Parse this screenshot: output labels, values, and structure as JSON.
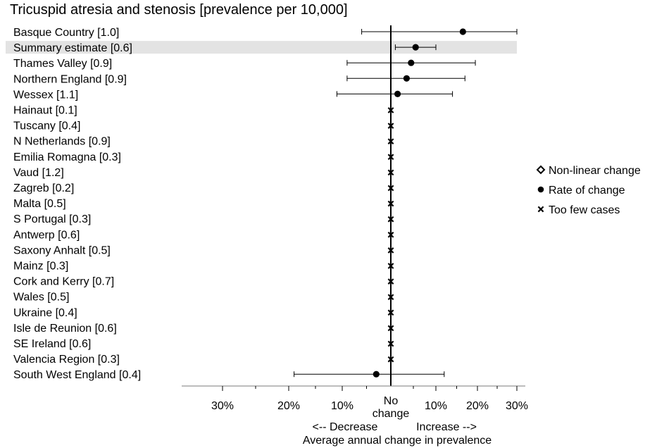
{
  "chart_data": {
    "type": "forest",
    "title": "Tricuspid atresia and stenosis [prevalence per 10,000]",
    "rows": [
      {
        "label": "Basque Country [1.0]",
        "marker": "dot",
        "estimate": 16.5,
        "ci_low": -6,
        "ci_high": 30
      },
      {
        "label": "Summary estimate [0.6]",
        "marker": "dot",
        "estimate": 5.5,
        "ci_low": 1,
        "ci_high": 10,
        "highlight": true
      },
      {
        "label": "Thames Valley [0.9]",
        "marker": "dot",
        "estimate": 4.5,
        "ci_low": -9,
        "ci_high": 19.5
      },
      {
        "label": "Northern England [0.9]",
        "marker": "dot",
        "estimate": 3.5,
        "ci_low": -9,
        "ci_high": 17
      },
      {
        "label": "Wessex [1.1]",
        "marker": "dot",
        "estimate": 1.5,
        "ci_low": -11,
        "ci_high": 14
      },
      {
        "label": "Hainaut [0.1]",
        "marker": "cross"
      },
      {
        "label": "Tuscany [0.4]",
        "marker": "cross"
      },
      {
        "label": "N Netherlands [0.9]",
        "marker": "cross"
      },
      {
        "label": "Emilia Romagna [0.3]",
        "marker": "cross"
      },
      {
        "label": "Vaud [1.2]",
        "marker": "cross"
      },
      {
        "label": "Zagreb [0.2]",
        "marker": "cross"
      },
      {
        "label": "Malta [0.5]",
        "marker": "cross"
      },
      {
        "label": "S Portugal [0.3]",
        "marker": "cross"
      },
      {
        "label": "Antwerp [0.6]",
        "marker": "cross"
      },
      {
        "label": "Saxony Anhalt [0.5]",
        "marker": "cross"
      },
      {
        "label": "Mainz [0.3]",
        "marker": "cross"
      },
      {
        "label": "Cork and Kerry [0.7]",
        "marker": "cross"
      },
      {
        "label": "Wales [0.5]",
        "marker": "cross"
      },
      {
        "label": "Ukraine [0.4]",
        "marker": "cross"
      },
      {
        "label": "Isle de Reunion [0.6]",
        "marker": "cross"
      },
      {
        "label": "SE Ireland [0.6]",
        "marker": "cross"
      },
      {
        "label": "Valencia Region [0.3]",
        "marker": "cross"
      },
      {
        "label": "South West England [0.4]",
        "marker": "dot",
        "estimate": -3,
        "ci_low": -19,
        "ci_high": 12
      }
    ],
    "x_axis": {
      "negative_range": [
        -30,
        0
      ],
      "positive_range": [
        0,
        30
      ],
      "negative_scale": "log-like (compressed)",
      "positive_scale": "log-like (compressed)",
      "ticks": [
        {
          "value": -30,
          "label": "30%"
        },
        {
          "value": -20,
          "label": "20%"
        },
        {
          "value": -10,
          "label": "10%"
        },
        {
          "value": 0,
          "label": "No change"
        },
        {
          "value": 10,
          "label": "10%"
        },
        {
          "value": 20,
          "label": "20%"
        },
        {
          "value": 30,
          "label": "30%"
        }
      ],
      "minor_ticks": [
        -25,
        -15,
        -5,
        5,
        15,
        25
      ],
      "decrease_label": "<-- Decrease",
      "increase_label": "Increase -->",
      "xlabel": "Average annual change in prevalence"
    },
    "legend": {
      "placement": "right",
      "items": [
        {
          "symbol": "diamond",
          "label": "Non-linear change"
        },
        {
          "symbol": "dot",
          "label": "Rate of change"
        },
        {
          "symbol": "cross",
          "label": "Too few cases"
        }
      ]
    },
    "colors": {
      "highlight_band": "#e3e3e3",
      "ink": "#000000"
    }
  }
}
